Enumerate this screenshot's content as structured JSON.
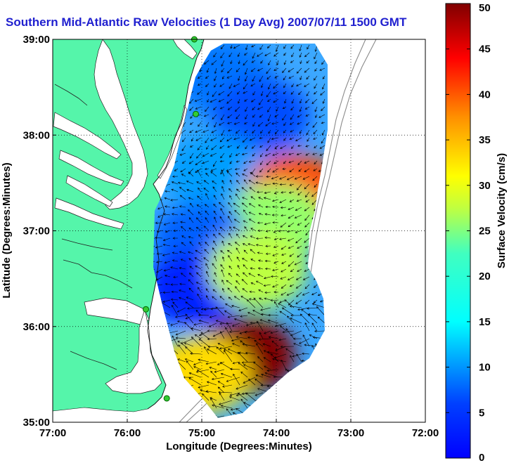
{
  "title": "Southern Mid-Atlantic Raw Velocities (1 Day Avg) 2007/07/11 1500 GMT",
  "map": {
    "xlabel": "Longitude (Degrees:Minutes)",
    "ylabel": "Latitude (Degrees:Minutes)",
    "xlim": [
      -77,
      -72
    ],
    "ylim": [
      35,
      39
    ],
    "lon_ticks": [
      {
        "value": -77,
        "label": "77:00"
      },
      {
        "value": -76,
        "label": "76:00"
      },
      {
        "value": -75,
        "label": "75:00"
      },
      {
        "value": -74,
        "label": "74:00"
      },
      {
        "value": -73,
        "label": "73:00"
      },
      {
        "value": -72,
        "label": "72:00"
      }
    ],
    "lat_ticks": [
      {
        "value": 35,
        "label": "35:00"
      },
      {
        "value": 36,
        "label": "36:00"
      },
      {
        "value": 37,
        "label": "37:00"
      },
      {
        "value": 38,
        "label": "38:00"
      },
      {
        "value": 39,
        "label": "39:00"
      }
    ],
    "grid": "dotted",
    "land_color": "#55f5aa",
    "water_color": "#ffffff",
    "stations": [
      {
        "lon": -75.1,
        "lat": 39.0
      },
      {
        "lon": -75.08,
        "lat": 38.22
      },
      {
        "lon": -75.75,
        "lat": 36.18
      },
      {
        "lon": -75.47,
        "lat": 35.25
      }
    ]
  },
  "colorbar": {
    "label": "Surface Velocity (cm/s)",
    "min": 0,
    "max": 50,
    "ticks": [
      {
        "value": 0,
        "label": "0"
      },
      {
        "value": 5,
        "label": "5"
      },
      {
        "value": 10,
        "label": "10"
      },
      {
        "value": 15,
        "label": "15"
      },
      {
        "value": 20,
        "label": "20"
      },
      {
        "value": 25,
        "label": "25"
      },
      {
        "value": 30,
        "label": "30"
      },
      {
        "value": 35,
        "label": "35"
      },
      {
        "value": 40,
        "label": "40"
      },
      {
        "value": 45,
        "label": "45"
      },
      {
        "value": 50,
        "label": "50"
      }
    ],
    "colormap": "jet"
  },
  "chart_data": {
    "type": "heatmap",
    "title": "Southern Mid-Atlantic Raw Velocities (1 Day Avg) 2007/07/11 1500 GMT",
    "xlabel": "Longitude (Degrees:Minutes)",
    "ylabel": "Latitude (Degrees:Minutes)",
    "value_label": "Surface Velocity (cm/s)",
    "xlim": [
      -77,
      -72
    ],
    "ylim": [
      35,
      39
    ],
    "clim": [
      0,
      50
    ],
    "regions": [
      {
        "lon": -74.7,
        "lat": 38.6,
        "speed": 12
      },
      {
        "lon": -74.2,
        "lat": 38.2,
        "speed": 10
      },
      {
        "lon": -74.8,
        "lat": 37.6,
        "speed": 14
      },
      {
        "lon": -73.75,
        "lat": 37.4,
        "speed": 40
      },
      {
        "lon": -74.0,
        "lat": 37.1,
        "speed": 26
      },
      {
        "lon": -75.0,
        "lat": 36.9,
        "speed": 11
      },
      {
        "lon": -75.1,
        "lat": 36.4,
        "speed": 8
      },
      {
        "lon": -74.25,
        "lat": 36.6,
        "speed": 28
      },
      {
        "lon": -74.4,
        "lat": 35.7,
        "speed": 50
      },
      {
        "lon": -75.0,
        "lat": 35.5,
        "speed": 33
      }
    ]
  }
}
